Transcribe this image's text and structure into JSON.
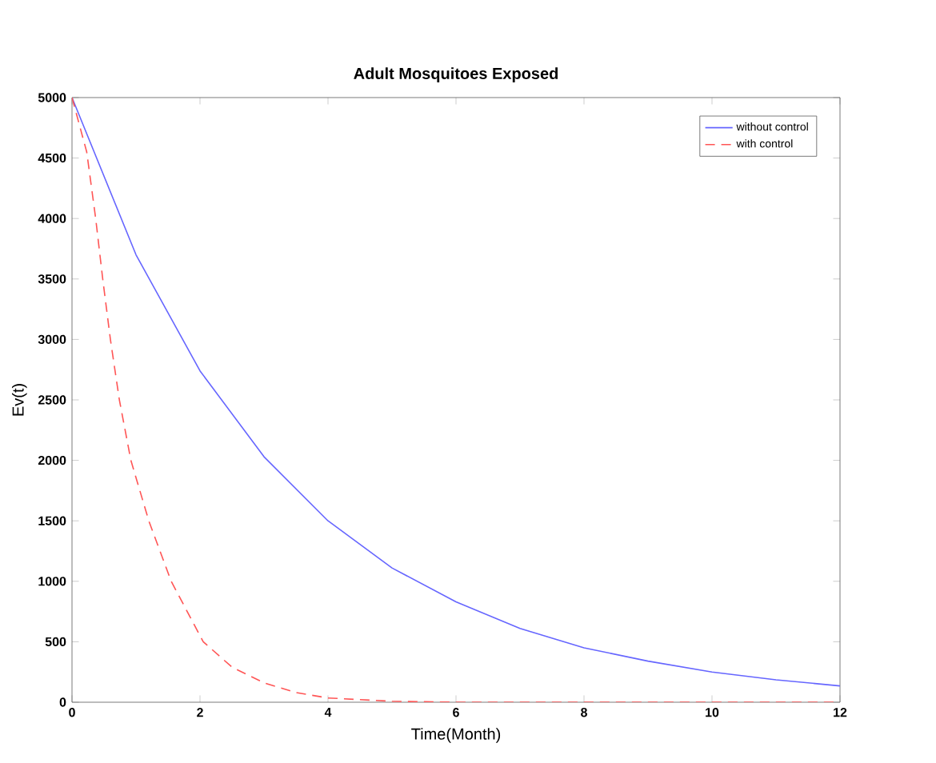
{
  "chart_data": {
    "type": "line",
    "title": "Adult Mosquitoes Exposed",
    "xlabel": "Time(Month)",
    "ylabel": "Ev(t)",
    "xlim": [
      0,
      12
    ],
    "ylim": [
      0,
      5000
    ],
    "xticks": [
      0,
      2,
      4,
      6,
      8,
      10,
      12
    ],
    "yticks": [
      0,
      500,
      1000,
      1500,
      2000,
      2500,
      3000,
      3500,
      4000,
      4500,
      5000
    ],
    "legend": "top right",
    "grid": false,
    "series": [
      {
        "name": "without control",
        "color": "#6666ff",
        "line_style": "solid",
        "x": [
          0,
          1,
          2,
          3,
          4,
          5,
          6,
          7,
          8,
          9,
          10,
          11,
          12
        ],
        "values": [
          5000,
          3700,
          2740,
          2030,
          1500,
          1110,
          830,
          610,
          450,
          340,
          250,
          185,
          135
        ]
      },
      {
        "name": "with control",
        "color": "#ff5555",
        "line_style": "dashed",
        "x": [
          0,
          0.23,
          0.37,
          0.48,
          0.6,
          0.74,
          0.92,
          1.2,
          1.55,
          2.05,
          2.5,
          3,
          3.5,
          4,
          5,
          6,
          8,
          10,
          12
        ],
        "values": [
          5000,
          4550,
          4000,
          3500,
          3000,
          2500,
          2000,
          1500,
          1000,
          500,
          290,
          160,
          80,
          35,
          8,
          0,
          0,
          0,
          0
        ]
      }
    ]
  }
}
